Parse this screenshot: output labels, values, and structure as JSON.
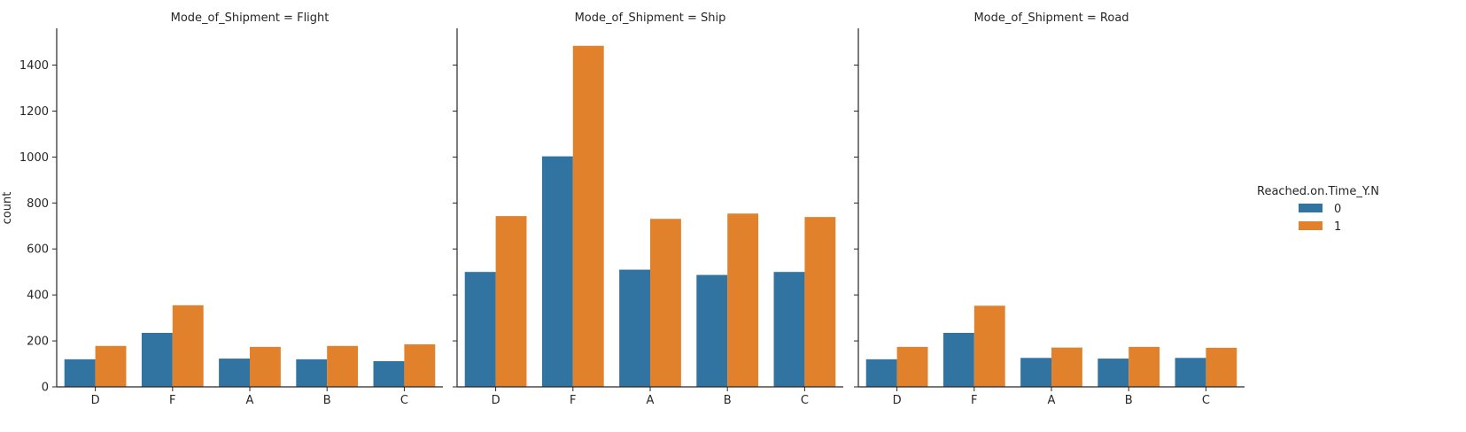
{
  "chart_data": {
    "type": "bar",
    "ylabel": "count",
    "ylim": [
      0,
      1560
    ],
    "yticks": [
      0,
      200,
      400,
      600,
      800,
      1000,
      1200,
      1400
    ],
    "categories": [
      "D",
      "F",
      "A",
      "B",
      "C"
    ],
    "legend": {
      "title": "Reached.on.Time_Y.N",
      "placement": "right",
      "entries": [
        {
          "label": "0",
          "color": "#3274a1"
        },
        {
          "label": "1",
          "color": "#e1812c"
        }
      ]
    },
    "panels": [
      {
        "title": "Mode_of_Shipment = Flight",
        "series": [
          {
            "name": "0",
            "values": [
              120,
              235,
              123,
              120,
              112
            ]
          },
          {
            "name": "1",
            "values": [
              178,
              355,
              174,
              178,
              185
            ]
          }
        ]
      },
      {
        "title": "Mode_of_Shipment = Ship",
        "series": [
          {
            "name": "0",
            "values": [
              500,
              1003,
              510,
              487,
              500
            ]
          },
          {
            "name": "1",
            "values": [
              743,
              1484,
              731,
              754,
              739
            ]
          }
        ]
      },
      {
        "title": "Mode_of_Shipment = Road",
        "series": [
          {
            "name": "0",
            "values": [
              120,
              235,
              126,
              123,
              126
            ]
          },
          {
            "name": "1",
            "values": [
              174,
              353,
              171,
              174,
              170
            ]
          }
        ]
      }
    ]
  }
}
